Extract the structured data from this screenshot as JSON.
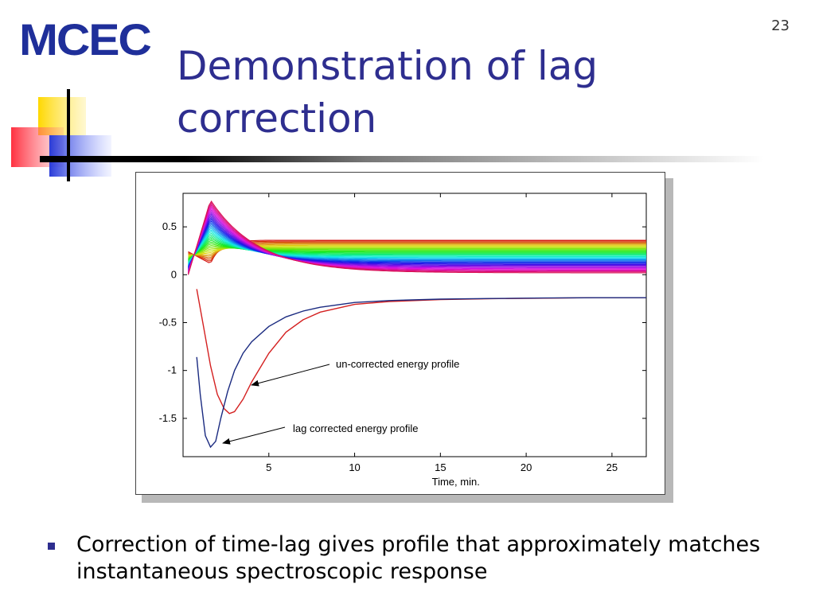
{
  "slide": {
    "logo": "MCEC",
    "page_number": "23",
    "title": "Demonstration of lag correction",
    "bullet": "Correction of time-lag gives profile that approximately matches instantaneous spectroscopic response"
  },
  "colors": {
    "title": "#2e2e8f",
    "logo": "#1f2f9a",
    "uncorrected_line": "#d42020",
    "corrected_line": "#1a2a80"
  },
  "chart_data": {
    "type": "line",
    "title": "",
    "xlabel": "Time, min.",
    "ylabel": "",
    "xlim": [
      0,
      27
    ],
    "ylim": [
      -1.9,
      0.85
    ],
    "xticks": [
      5,
      10,
      15,
      20,
      25
    ],
    "yticks": [
      0.5,
      0,
      -0.5,
      -1,
      -1.5
    ],
    "tick_labels_x": [
      "5",
      "10",
      "15",
      "20",
      "25"
    ],
    "tick_labels_y": [
      "0.5",
      "0",
      "-0.5",
      "-1",
      "-1.5"
    ],
    "grid": false,
    "annotations": [
      "un-corrected energy profile",
      "lag corrected energy profile"
    ],
    "series": [
      {
        "name": "un-corrected energy profile",
        "x": [
          0.8,
          1.2,
          1.6,
          2.0,
          2.4,
          2.7,
          3.0,
          3.5,
          4.0,
          5.0,
          6.0,
          7.0,
          8.0,
          10.0,
          12.0,
          15.0,
          18.0,
          21.0,
          24.0,
          27.0
        ],
        "values": [
          -0.15,
          -0.55,
          -0.95,
          -1.25,
          -1.4,
          -1.45,
          -1.43,
          -1.3,
          -1.12,
          -0.82,
          -0.6,
          -0.47,
          -0.39,
          -0.31,
          -0.28,
          -0.26,
          -0.25,
          -0.245,
          -0.24,
          -0.24
        ]
      },
      {
        "name": "lag corrected energy profile",
        "x": [
          0.8,
          1.0,
          1.3,
          1.6,
          1.9,
          2.2,
          2.6,
          3.0,
          3.5,
          4.0,
          5.0,
          6.0,
          7.0,
          8.0,
          10.0,
          12.0,
          15.0,
          18.0,
          21.0,
          24.0,
          27.0
        ],
        "values": [
          -0.86,
          -1.25,
          -1.68,
          -1.8,
          -1.74,
          -1.5,
          -1.22,
          -1.0,
          -0.82,
          -0.7,
          -0.54,
          -0.44,
          -0.38,
          -0.34,
          -0.29,
          -0.27,
          -0.255,
          -0.248,
          -0.243,
          -0.24,
          -0.24
        ]
      }
    ],
    "spectral_family": {
      "description_count": 36,
      "peak_time": 0.6,
      "peak_value": 0.78,
      "start_value": 0.3,
      "plateau_min": 0.02,
      "plateau_max": 0.36
    }
  }
}
